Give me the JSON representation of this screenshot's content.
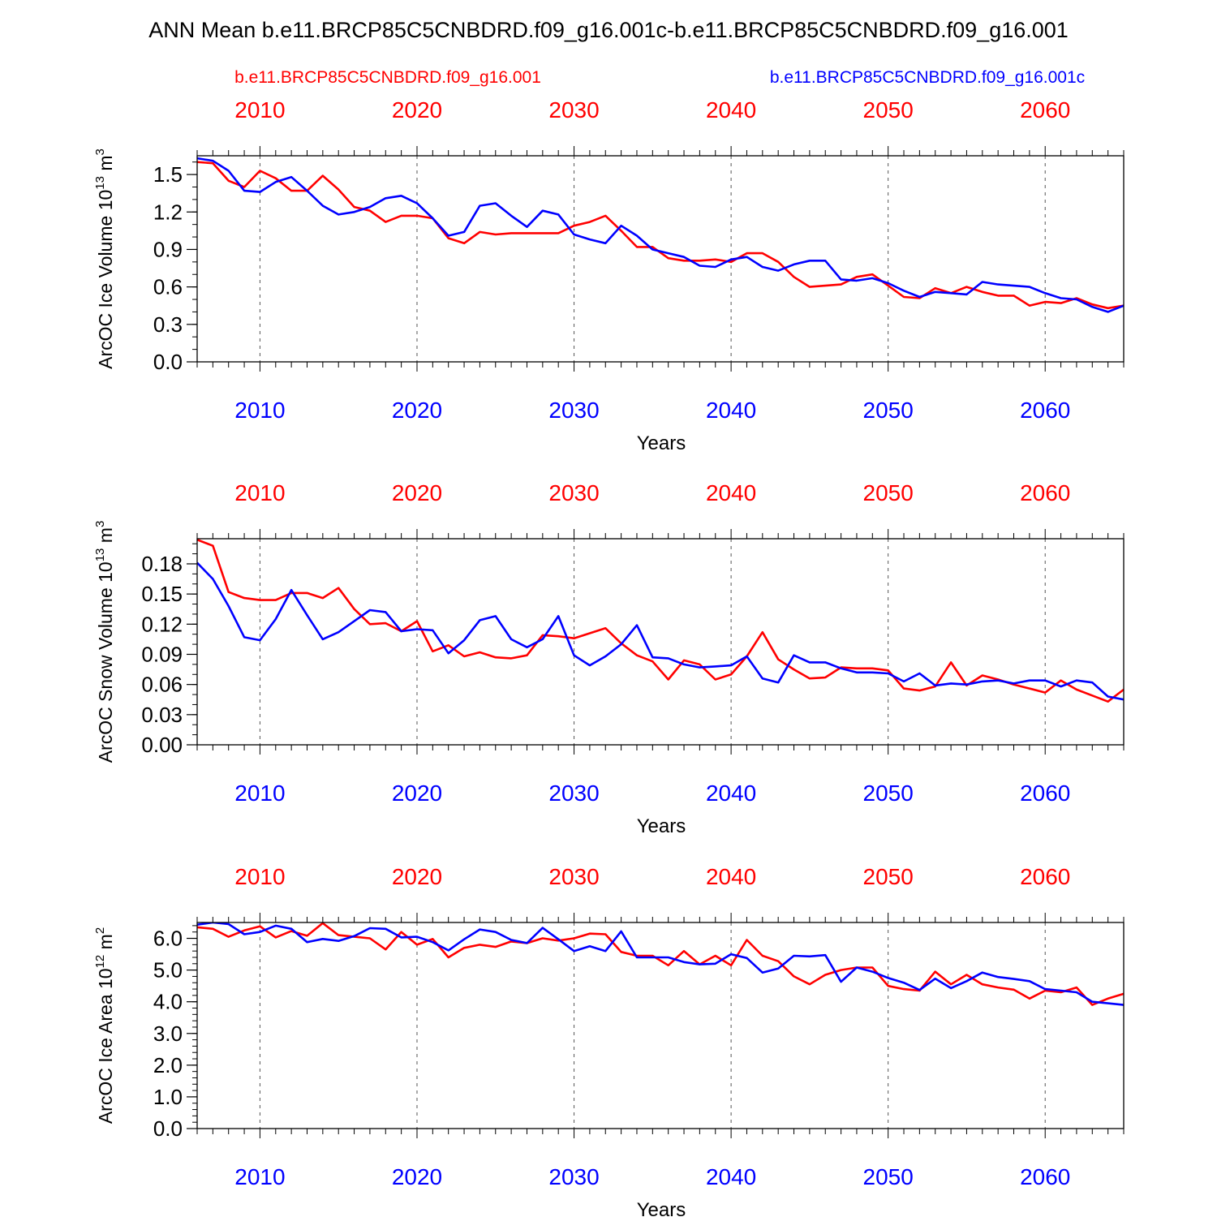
{
  "title": "ANN Mean b.e11.BRCP85C5CNBDRD.f09_g16.001c-b.e11.BRCP85C5CNBDRD.f09_g16.001",
  "legend": {
    "red_label": "b.e11.BRCP85C5CNBDRD.f09_g16.001",
    "blue_label": "b.e11.BRCP85C5CNBDRD.f09_g16.001c"
  },
  "colors": {
    "red": "#ff0000",
    "blue": "#0000ff",
    "axis": "#000000",
    "grid": "#555555"
  },
  "chart_data": [
    {
      "type": "line",
      "ylabel_main": "ArcOC Ice Volume 10",
      "ylabel_exp": "13",
      "ylabel_unit": " m",
      "ylabel_unit_exp": "3",
      "xlabel": "Years",
      "xlim": [
        2006,
        2065
      ],
      "ylim": [
        0.0,
        1.65
      ],
      "yticks": [
        "0.0",
        "0.3",
        "0.6",
        "0.9",
        "1.2",
        "1.5"
      ],
      "ytick_values": [
        0.0,
        0.3,
        0.6,
        0.9,
        1.2,
        1.5
      ],
      "yminor_step": 0.1,
      "xticks": [
        "2010",
        "2020",
        "2030",
        "2040",
        "2050",
        "2060"
      ],
      "xtick_values": [
        2010,
        2020,
        2030,
        2040,
        2050,
        2060
      ],
      "x": [
        2006,
        2007,
        2008,
        2009,
        2010,
        2011,
        2012,
        2013,
        2014,
        2015,
        2016,
        2017,
        2018,
        2019,
        2020,
        2021,
        2022,
        2023,
        2024,
        2025,
        2026,
        2027,
        2028,
        2029,
        2030,
        2031,
        2032,
        2033,
        2034,
        2035,
        2036,
        2037,
        2038,
        2039,
        2040,
        2041,
        2042,
        2043,
        2044,
        2045,
        2046,
        2047,
        2048,
        2049,
        2050,
        2051,
        2052,
        2053,
        2054,
        2055,
        2056,
        2057,
        2058,
        2059,
        2060,
        2061,
        2062,
        2063,
        2064,
        2065
      ],
      "series": [
        {
          "name": "b.e11.BRCP85C5CNBDRD.f09_g16.001",
          "color": "red",
          "values": [
            1.6,
            1.59,
            1.45,
            1.4,
            1.53,
            1.47,
            1.37,
            1.37,
            1.49,
            1.38,
            1.24,
            1.21,
            1.12,
            1.17,
            1.17,
            1.15,
            0.99,
            0.95,
            1.04,
            1.02,
            1.03,
            1.03,
            1.03,
            1.03,
            1.09,
            1.12,
            1.17,
            1.05,
            0.92,
            0.92,
            0.83,
            0.81,
            0.81,
            0.82,
            0.8,
            0.87,
            0.87,
            0.8,
            0.68,
            0.6,
            0.61,
            0.62,
            0.68,
            0.7,
            0.61,
            0.52,
            0.51,
            0.59,
            0.55,
            0.6,
            0.56,
            0.53,
            0.53,
            0.45,
            0.48,
            0.47,
            0.51,
            0.46,
            0.43,
            0.45
          ]
        },
        {
          "name": "b.e11.BRCP85C5CNBDRD.f09_g16.001c",
          "color": "blue",
          "values": [
            1.63,
            1.61,
            1.53,
            1.37,
            1.36,
            1.44,
            1.48,
            1.37,
            1.25,
            1.18,
            1.2,
            1.24,
            1.31,
            1.33,
            1.27,
            1.15,
            1.01,
            1.04,
            1.25,
            1.27,
            1.17,
            1.08,
            1.21,
            1.18,
            1.02,
            0.98,
            0.95,
            1.09,
            1.01,
            0.9,
            0.87,
            0.84,
            0.77,
            0.76,
            0.82,
            0.84,
            0.76,
            0.73,
            0.78,
            0.81,
            0.81,
            0.66,
            0.65,
            0.67,
            0.63,
            0.57,
            0.52,
            0.56,
            0.55,
            0.54,
            0.64,
            0.62,
            0.61,
            0.6,
            0.55,
            0.51,
            0.5,
            0.44,
            0.4,
            0.45
          ]
        }
      ]
    },
    {
      "type": "line",
      "ylabel_main": "ArcOC Snow Volume 10",
      "ylabel_exp": "13",
      "ylabel_unit": " m",
      "ylabel_unit_exp": "3",
      "xlabel": "Years",
      "xlim": [
        2006,
        2065
      ],
      "ylim": [
        0.0,
        0.205
      ],
      "yticks": [
        "0.00",
        "0.03",
        "0.06",
        "0.09",
        "0.12",
        "0.15",
        "0.18"
      ],
      "ytick_values": [
        0.0,
        0.03,
        0.06,
        0.09,
        0.12,
        0.15,
        0.18
      ],
      "yminor_step": 0.01,
      "xticks": [
        "2010",
        "2020",
        "2030",
        "2040",
        "2050",
        "2060"
      ],
      "xtick_values": [
        2010,
        2020,
        2030,
        2040,
        2050,
        2060
      ],
      "x": [
        2006,
        2007,
        2008,
        2009,
        2010,
        2011,
        2012,
        2013,
        2014,
        2015,
        2016,
        2017,
        2018,
        2019,
        2020,
        2021,
        2022,
        2023,
        2024,
        2025,
        2026,
        2027,
        2028,
        2029,
        2030,
        2031,
        2032,
        2033,
        2034,
        2035,
        2036,
        2037,
        2038,
        2039,
        2040,
        2041,
        2042,
        2043,
        2044,
        2045,
        2046,
        2047,
        2048,
        2049,
        2050,
        2051,
        2052,
        2053,
        2054,
        2055,
        2056,
        2057,
        2058,
        2059,
        2060,
        2061,
        2062,
        2063,
        2064,
        2065
      ],
      "series": [
        {
          "name": "b.e11.BRCP85C5CNBDRD.f09_g16.001",
          "color": "red",
          "values": [
            0.204,
            0.198,
            0.152,
            0.146,
            0.144,
            0.144,
            0.151,
            0.151,
            0.146,
            0.156,
            0.135,
            0.12,
            0.121,
            0.113,
            0.123,
            0.093,
            0.099,
            0.088,
            0.092,
            0.087,
            0.086,
            0.089,
            0.109,
            0.108,
            0.106,
            0.111,
            0.116,
            0.101,
            0.089,
            0.083,
            0.065,
            0.084,
            0.08,
            0.065,
            0.07,
            0.088,
            0.112,
            0.085,
            0.075,
            0.066,
            0.067,
            0.077,
            0.076,
            0.076,
            0.074,
            0.056,
            0.054,
            0.058,
            0.082,
            0.059,
            0.069,
            0.065,
            0.06,
            0.056,
            0.052,
            0.064,
            0.055,
            0.049,
            0.043,
            0.055
          ]
        },
        {
          "name": "b.e11.BRCP85C5CNBDRD.f09_g16.001c",
          "color": "blue",
          "values": [
            0.181,
            0.165,
            0.138,
            0.107,
            0.104,
            0.125,
            0.154,
            0.129,
            0.105,
            0.112,
            0.123,
            0.134,
            0.132,
            0.113,
            0.115,
            0.114,
            0.091,
            0.104,
            0.124,
            0.128,
            0.105,
            0.097,
            0.105,
            0.128,
            0.089,
            0.079,
            0.088,
            0.1,
            0.119,
            0.087,
            0.086,
            0.08,
            0.077,
            0.078,
            0.079,
            0.088,
            0.066,
            0.062,
            0.089,
            0.082,
            0.082,
            0.076,
            0.072,
            0.072,
            0.071,
            0.063,
            0.071,
            0.059,
            0.061,
            0.06,
            0.063,
            0.064,
            0.061,
            0.064,
            0.064,
            0.058,
            0.064,
            0.062,
            0.048,
            0.045
          ]
        }
      ]
    },
    {
      "type": "line",
      "ylabel_main": "ArcOC Ice Area 10",
      "ylabel_exp": "12",
      "ylabel_unit": " m",
      "ylabel_unit_exp": "2",
      "xlabel": "Years",
      "xlim": [
        2006,
        2065
      ],
      "ylim": [
        0.0,
        6.5
      ],
      "yticks": [
        "0.0",
        "1.0",
        "2.0",
        "3.0",
        "4.0",
        "5.0",
        "6.0"
      ],
      "ytick_values": [
        0.0,
        1.0,
        2.0,
        3.0,
        4.0,
        5.0,
        6.0
      ],
      "yminor_step": 0.2,
      "xticks": [
        "2010",
        "2020",
        "2030",
        "2040",
        "2050",
        "2060"
      ],
      "xtick_values": [
        2010,
        2020,
        2030,
        2040,
        2050,
        2060
      ],
      "x": [
        2006,
        2007,
        2008,
        2009,
        2010,
        2011,
        2012,
        2013,
        2014,
        2015,
        2016,
        2017,
        2018,
        2019,
        2020,
        2021,
        2022,
        2023,
        2024,
        2025,
        2026,
        2027,
        2028,
        2029,
        2030,
        2031,
        2032,
        2033,
        2034,
        2035,
        2036,
        2037,
        2038,
        2039,
        2040,
        2041,
        2042,
        2043,
        2044,
        2045,
        2046,
        2047,
        2048,
        2049,
        2050,
        2051,
        2052,
        2053,
        2054,
        2055,
        2056,
        2057,
        2058,
        2059,
        2060,
        2061,
        2062,
        2063,
        2064,
        2065
      ],
      "series": [
        {
          "name": "b.e11.BRCP85C5CNBDRD.f09_g16.001",
          "color": "red",
          "values": [
            6.35,
            6.3,
            6.05,
            6.25,
            6.38,
            6.03,
            6.23,
            6.08,
            6.48,
            6.1,
            6.05,
            6.0,
            5.65,
            6.2,
            5.8,
            5.98,
            5.4,
            5.7,
            5.8,
            5.73,
            5.9,
            5.85,
            6.0,
            5.93,
            6.0,
            6.15,
            6.13,
            5.57,
            5.45,
            5.45,
            5.15,
            5.6,
            5.18,
            5.45,
            5.15,
            5.95,
            5.45,
            5.28,
            4.8,
            4.55,
            4.85,
            5.0,
            5.08,
            5.08,
            4.5,
            4.4,
            4.35,
            4.95,
            4.55,
            4.85,
            4.55,
            4.45,
            4.38,
            4.1,
            4.35,
            4.3,
            4.45,
            3.9,
            4.1,
            4.25
          ]
        },
        {
          "name": "b.e11.BRCP85C5CNBDRD.f09_g16.001c",
          "color": "blue",
          "values": [
            6.43,
            6.5,
            6.45,
            6.13,
            6.2,
            6.4,
            6.3,
            5.88,
            5.98,
            5.92,
            6.07,
            6.32,
            6.3,
            6.03,
            6.05,
            5.88,
            5.62,
            5.97,
            6.28,
            6.2,
            5.95,
            5.85,
            6.33,
            5.97,
            5.6,
            5.75,
            5.6,
            6.22,
            5.4,
            5.4,
            5.4,
            5.25,
            5.18,
            5.2,
            5.5,
            5.38,
            4.92,
            5.05,
            5.45,
            5.43,
            5.47,
            4.63,
            5.08,
            4.95,
            4.75,
            4.6,
            4.37,
            4.73,
            4.43,
            4.65,
            4.92,
            4.78,
            4.72,
            4.65,
            4.4,
            4.35,
            4.3,
            4.0,
            3.95,
            3.9
          ]
        }
      ]
    }
  ]
}
